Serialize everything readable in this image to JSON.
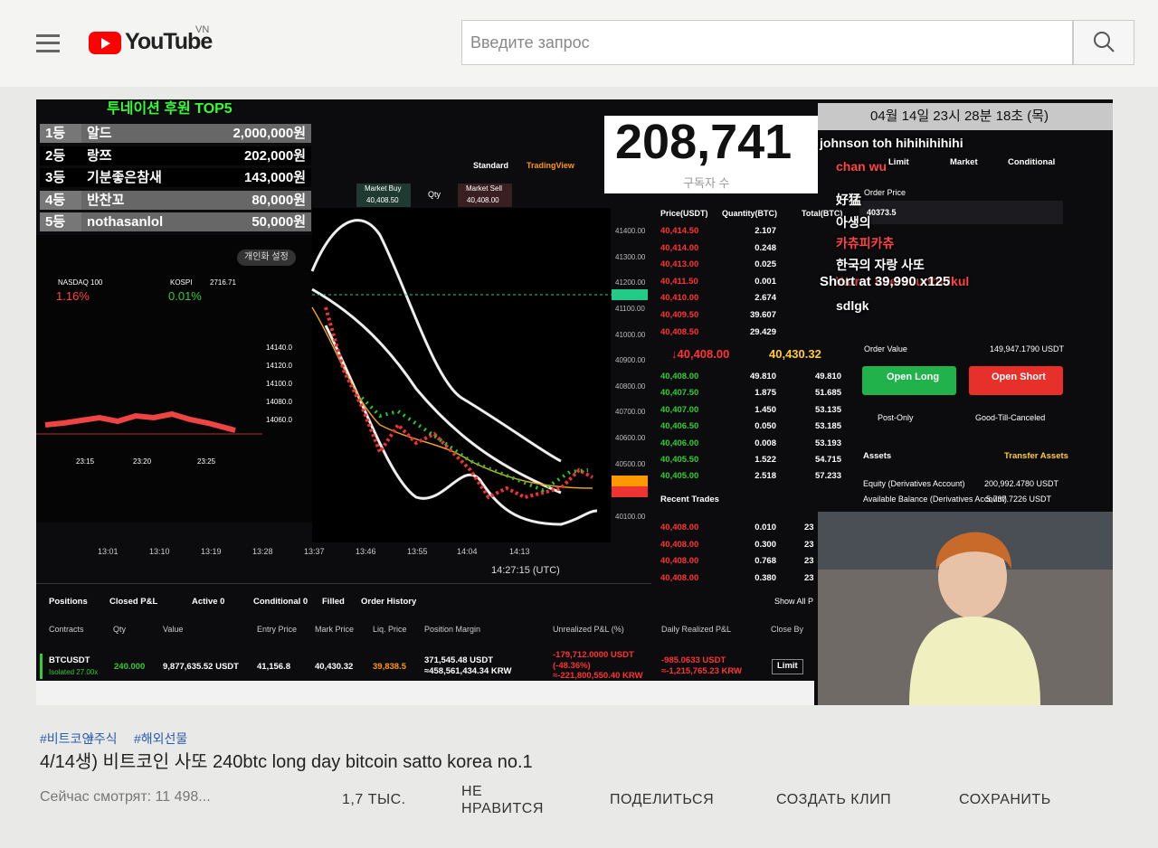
{
  "header": {
    "logo": "YouTube",
    "region": "VN",
    "search_placeholder": "Введите запрос"
  },
  "video": {
    "donation_title": "투네이션 후원 TOP5",
    "donations": [
      {
        "rank": "1등",
        "name": "알드",
        "amount": "2,000,000원"
      },
      {
        "rank": "2등",
        "name": "랑쯔",
        "amount": "202,000원"
      },
      {
        "rank": "3등",
        "name": "기분좋은참새",
        "amount": "143,000원"
      },
      {
        "rank": "4등",
        "name": "반찬꼬",
        "amount": "80,000원"
      },
      {
        "rank": "5등",
        "name": "nothasanlol",
        "amount": "50,000원"
      }
    ],
    "subscriber_count": "208,741",
    "subscriber_label": "구독자 수",
    "timestamp": "04월 14일 23시 28분 18초 (목)",
    "chat": [
      "johnson toh hihihihihihi",
      "chan wu",
      "好猛",
      "아생의",
      "카츄피카츄",
      "한국의 자랑 사또",
      "Warut Leerasuntudkul",
      "Short at 39,990 x125",
      "sdlgk"
    ],
    "mini_panel": {
      "settings": "개인화 설정",
      "nasdaq": "NASDAQ 100",
      "nasdaq_change": "1.16%",
      "kospi": "KOSPI",
      "kospi_value": "2716.71",
      "kospi_change": "0.01%",
      "yticks": [
        "14140.0",
        "14120.0",
        "14100.0",
        "14080.0",
        "14060.0"
      ],
      "times": [
        "23:15",
        "23:20",
        "23:25"
      ]
    },
    "chart": {
      "modes": [
        "Standard",
        "TradingView"
      ],
      "market_buy": "Market Buy",
      "market_buy_price": "40,408.50",
      "qty": "Qty",
      "market_sell": "Market Sell",
      "market_sell_price": "40,408.00",
      "yticks": [
        "41400.00",
        "41300.00",
        "41200.00",
        "41100.00",
        "41000.00",
        "40900.00",
        "40800.00",
        "40700.00",
        "40600.00",
        "40500.00",
        "40100.00"
      ],
      "times": [
        "13:01",
        "13:10",
        "13:19",
        "13:28",
        "13:37",
        "13:46",
        "13:55",
        "14:04",
        "14:13"
      ],
      "clock": "14:27:15 (UTC)"
    },
    "order_book": {
      "headers": [
        "Price(USDT)",
        "Quantity(BTC)",
        "Total(BTC)"
      ],
      "asks": [
        [
          "40,414.50",
          "2.107"
        ],
        [
          "40,414.00",
          "0.248"
        ],
        [
          "40,413.00",
          "0.025"
        ],
        [
          "40,411.50",
          "0.001"
        ],
        [
          "40,410.00",
          "2.674"
        ],
        [
          "40,409.50",
          "39.607"
        ],
        [
          "40,408.50",
          "29.429"
        ]
      ],
      "last_price": "↓40,408.00",
      "mark_price": "40,430.32",
      "bids": [
        [
          "40,408.00",
          "49.810",
          "49.810"
        ],
        [
          "40,407.50",
          "1.875",
          "51.685"
        ],
        [
          "40,407.00",
          "1.450",
          "53.135"
        ],
        [
          "40,406.50",
          "0.050",
          "53.185"
        ],
        [
          "40,406.00",
          "0.008",
          "53.193"
        ],
        [
          "40,405.50",
          "1.522",
          "54.715"
        ],
        [
          "40,405.00",
          "2.518",
          "57.233"
        ]
      ],
      "recent_trades": "Recent Trades",
      "trades": [
        [
          "40,408.00",
          "0.010",
          "23"
        ],
        [
          "40,408.00",
          "0.300",
          "23"
        ],
        [
          "40,408.00",
          "0.768",
          "23"
        ],
        [
          "40,408.00",
          "0.380",
          "23"
        ]
      ]
    },
    "trade_panel": {
      "tabs": [
        "Limit",
        "Market",
        "Conditional"
      ],
      "order_price_label": "Order Price",
      "order_price": "40373.5",
      "order_value_label": "Order Value",
      "order_value": "149,947.1790 USDT",
      "open_long": "Open Long",
      "open_short": "Open Short",
      "post_only": "Post-Only",
      "tif": "Good-Till-Canceled",
      "assets": "Assets",
      "transfer": "Transfer Assets",
      "equity_label": "Equity (Derivatives Account)",
      "equity": "200,992.4780 USDT",
      "available_label": "Available Balance (Derivatives Account)",
      "available": "5,737.7226 USDT"
    },
    "positions": {
      "tabs": [
        "Positions",
        "Closed P&L",
        "Active 0",
        "Conditional 0",
        "Filled",
        "Order History"
      ],
      "show_all": "Show All P",
      "columns": [
        "Contracts",
        "Qty",
        "Value",
        "Entry Price",
        "Mark Price",
        "Liq. Price",
        "Position Margin",
        "Unrealized P&L (%)",
        "Daily Realized P&L",
        "Close By"
      ],
      "row": {
        "symbol": "BTCUSDT",
        "leverage": "Isolated 27.00x",
        "qty": "240.000",
        "value": "9,877,635.52 USDT",
        "entry": "41,156.8",
        "mark": "40,430.32",
        "liq": "39,838.5",
        "margin": "371,545.48 USDT",
        "margin_krw": "≈458,561,434.34 KRW",
        "upnl": "-179,712.0000 USDT",
        "upnl_pct": "(-48.36%)",
        "upnl_krw": "≈-221,800,550.40 KRW",
        "rpnl": "-985.0633 USDT",
        "rpnl_krw": "≈-1,215,765.23 KRW",
        "close": "Limit"
      }
    }
  },
  "meta": {
    "tags": [
      "#비트코인",
      "#주식",
      "#해외선물"
    ],
    "title": "4/14생) 비트코인 사또 240btc long day bitcoin satto korea no.1",
    "viewers": "Сейчас смотрят: 11 498...",
    "actions": [
      "1,7 ТЫС.",
      "НЕ НРАВИТСЯ",
      "ПОДЕЛИТЬСЯ",
      "СОЗДАТЬ КЛИП",
      "СОХРАНИТЬ"
    ]
  }
}
